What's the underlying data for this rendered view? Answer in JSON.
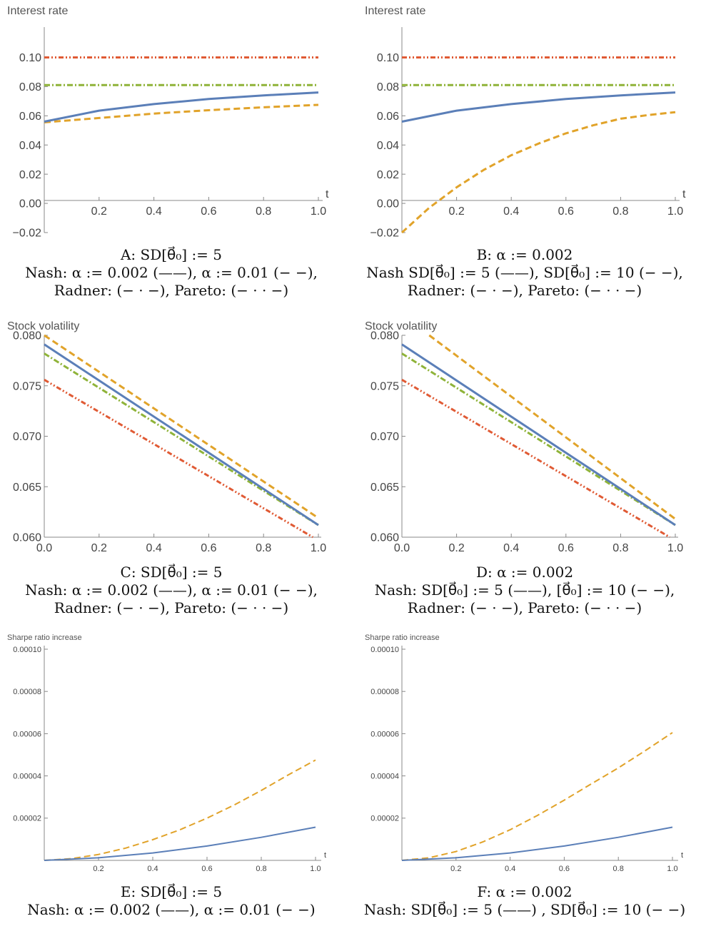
{
  "colors": {
    "nash_low": "#5b7fb8",
    "nash_high": "#e1a32a",
    "radner": "#8fb339",
    "pareto": "#e05a34",
    "axis": "#888888"
  },
  "chart_data": [
    {
      "id": "A",
      "type": "line",
      "title": "Interest rate",
      "xlabel": "t",
      "ylabel": "Interest rate",
      "xlim": [
        0,
        1
      ],
      "ylim": [
        -0.02,
        0.11
      ],
      "xticks": [
        "0.2",
        "0.4",
        "0.6",
        "0.8",
        "1.0"
      ],
      "yticks": [
        "−0.02",
        "0.00",
        "0.02",
        "0.04",
        "0.06",
        "0.08",
        "0.10"
      ],
      "series": [
        {
          "style": "solid",
          "color_key": "nash_low",
          "x": [
            0,
            0.2,
            0.4,
            0.6,
            0.8,
            1.0
          ],
          "y": [
            0.056,
            0.0635,
            0.068,
            0.0715,
            0.074,
            0.076
          ]
        },
        {
          "style": "dashed",
          "color_key": "nash_high",
          "x": [
            0,
            0.2,
            0.4,
            0.6,
            0.8,
            1.0
          ],
          "y": [
            0.0555,
            0.0585,
            0.0615,
            0.0638,
            0.0658,
            0.0675
          ]
        },
        {
          "style": "dashdot",
          "color_key": "radner",
          "x": [
            0,
            1.0
          ],
          "y": [
            0.081,
            0.081
          ]
        },
        {
          "style": "dashdotdot",
          "color_key": "pareto",
          "x": [
            0,
            1.0
          ],
          "y": [
            0.1,
            0.1
          ]
        }
      ],
      "caption": [
        "A: SD[θ⃗₀] := 5",
        "Nash: α := 0.002 (——), α := 0.01 (− −),",
        "Radner: (− · −), Pareto: (− · · −)"
      ]
    },
    {
      "id": "B",
      "type": "line",
      "title": "Interest rate",
      "xlabel": "t",
      "ylabel": "Interest rate",
      "xlim": [
        0,
        1
      ],
      "ylim": [
        -0.02,
        0.11
      ],
      "xticks": [
        "0.2",
        "0.4",
        "0.6",
        "0.8",
        "1.0"
      ],
      "yticks": [
        "−0.02",
        "0.00",
        "0.02",
        "0.04",
        "0.06",
        "0.08",
        "0.10"
      ],
      "series": [
        {
          "style": "solid",
          "color_key": "nash_low",
          "x": [
            0,
            0.2,
            0.4,
            0.6,
            0.8,
            1.0
          ],
          "y": [
            0.056,
            0.0635,
            0.068,
            0.0715,
            0.074,
            0.076
          ]
        },
        {
          "style": "dashed",
          "color_key": "nash_high",
          "x": [
            0,
            0.1,
            0.2,
            0.3,
            0.4,
            0.5,
            0.6,
            0.7,
            0.8,
            0.9,
            1.0
          ],
          "y": [
            -0.02,
            -0.003,
            0.011,
            0.023,
            0.033,
            0.041,
            0.048,
            0.0535,
            0.058,
            0.0605,
            0.0625
          ]
        },
        {
          "style": "dashdot",
          "color_key": "radner",
          "x": [
            0,
            1.0
          ],
          "y": [
            0.081,
            0.081
          ]
        },
        {
          "style": "dashdotdot",
          "color_key": "pareto",
          "x": [
            0,
            1.0
          ],
          "y": [
            0.1,
            0.1
          ]
        }
      ],
      "caption": [
        "B: α := 0.002",
        "Nash SD[θ⃗₀] := 5 (——), SD[θ⃗₀] := 10 (− −),",
        "Radner: (− · −), Pareto: (− · · −)"
      ]
    },
    {
      "id": "C",
      "type": "line",
      "title": "Stock volatility",
      "xlabel": "",
      "ylabel": "Stock volatility",
      "xlim": [
        0,
        1
      ],
      "ylim": [
        0.06,
        0.08
      ],
      "xticks": [
        "0.0",
        "0.2",
        "0.4",
        "0.6",
        "0.8",
        "1.0"
      ],
      "yticks": [
        "0.060",
        "0.065",
        "0.070",
        "0.075",
        "0.080"
      ],
      "series": [
        {
          "style": "solid",
          "color_key": "nash_low",
          "x": [
            0,
            1.0
          ],
          "y": [
            0.0791,
            0.0612
          ]
        },
        {
          "style": "dashed",
          "color_key": "nash_high",
          "x": [
            0,
            1.0
          ],
          "y": [
            0.08,
            0.0619
          ]
        },
        {
          "style": "dashdot",
          "color_key": "radner",
          "x": [
            0,
            1.0
          ],
          "y": [
            0.0782,
            0.0612
          ]
        },
        {
          "style": "dashdotdot",
          "color_key": "pareto",
          "x": [
            0,
            0.98
          ],
          "y": [
            0.0756,
            0.06
          ]
        }
      ],
      "caption": [
        "C: SD[θ⃗₀] := 5",
        "Nash: α := 0.002 (——), α := 0.01 (− −),",
        "Radner: (− · −), Pareto: (− · · −)"
      ]
    },
    {
      "id": "D",
      "type": "line",
      "title": "Stock volatility",
      "xlabel": "",
      "ylabel": "Stock volatility",
      "xlim": [
        0,
        1
      ],
      "ylim": [
        0.06,
        0.08
      ],
      "xticks": [
        "0.0",
        "0.2",
        "0.4",
        "0.6",
        "0.8",
        "1.0"
      ],
      "yticks": [
        "0.060",
        "0.065",
        "0.070",
        "0.075",
        "0.080"
      ],
      "series": [
        {
          "style": "solid",
          "color_key": "nash_low",
          "x": [
            0,
            1.0
          ],
          "y": [
            0.0791,
            0.0612
          ]
        },
        {
          "style": "dashed",
          "color_key": "nash_high",
          "x": [
            0.1,
            1.0
          ],
          "y": [
            0.08,
            0.0618
          ]
        },
        {
          "style": "dashdot",
          "color_key": "radner",
          "x": [
            0,
            1.0
          ],
          "y": [
            0.0782,
            0.0612
          ]
        },
        {
          "style": "dashdotdot",
          "color_key": "pareto",
          "x": [
            0,
            0.98
          ],
          "y": [
            0.0756,
            0.06
          ]
        }
      ],
      "caption": [
        "D: α := 0.002",
        "Nash: SD[θ⃗₀] := 5 (——), [θ⃗₀] := 10 (− −),",
        "Radner: (− · −), Pareto: (− · · −)"
      ]
    },
    {
      "id": "E",
      "type": "line",
      "title": "Sharpe ratio increase",
      "xlabel": "t",
      "ylabel": "Sharpe ratio increase",
      "xlim": [
        0,
        1
      ],
      "ylim": [
        0,
        0.0001
      ],
      "xticks": [
        "0.2",
        "0.4",
        "0.6",
        "0.8",
        "1.0"
      ],
      "yticks": [
        "0.00002",
        "0.00004",
        "0.00006",
        "0.00008",
        "0.00010"
      ],
      "series": [
        {
          "style": "solid",
          "color_key": "nash_low",
          "x": [
            0,
            0.2,
            0.4,
            0.6,
            0.8,
            1.0
          ],
          "y": [
            0,
            1.2e-06,
            3.5e-06,
            6.8e-06,
            1.09e-05,
            1.57e-05
          ]
        },
        {
          "style": "dashed",
          "color_key": "nash_high",
          "x": [
            0,
            0.1,
            0.2,
            0.3,
            0.4,
            0.5,
            0.6,
            0.7,
            0.8,
            0.9,
            1.0
          ],
          "y": [
            0,
            8e-07,
            2.8e-06,
            5.8e-06,
            9.8e-06,
            1.45e-05,
            2e-05,
            2.62e-05,
            3.31e-05,
            4.05e-05,
            4.75e-05
          ]
        }
      ],
      "caption": [
        "E: SD[θ⃗₀] := 5",
        "Nash: α := 0.002 (——), α := 0.01 (− −)"
      ]
    },
    {
      "id": "F",
      "type": "line",
      "title": "Sharpe ratio increase",
      "xlabel": "t",
      "ylabel": "Sharpe ratio increase",
      "xlim": [
        0,
        1
      ],
      "ylim": [
        0,
        0.0001
      ],
      "xticks": [
        "0.2",
        "0.4",
        "0.6",
        "0.8",
        "1.0"
      ],
      "yticks": [
        "0.00002",
        "0.00004",
        "0.00006",
        "0.00008",
        "0.00010"
      ],
      "series": [
        {
          "style": "solid",
          "color_key": "nash_low",
          "x": [
            0,
            0.2,
            0.4,
            0.6,
            0.8,
            1.0
          ],
          "y": [
            0,
            1.2e-06,
            3.5e-06,
            6.8e-06,
            1.09e-05,
            1.57e-05
          ]
        },
        {
          "style": "dashed",
          "color_key": "nash_high",
          "x": [
            0,
            0.1,
            0.2,
            0.3,
            0.4,
            0.5,
            0.6,
            0.7,
            0.8,
            0.9,
            1.0
          ],
          "y": [
            0,
            1.2e-06,
            4.2e-06,
            8.8e-06,
            1.45e-05,
            2.12e-05,
            2.85e-05,
            3.62e-05,
            4.38e-05,
            5.2e-05,
            6.05e-05
          ]
        }
      ],
      "caption": [
        "F: α := 0.002",
        "Nash: SD[θ⃗₀] := 5 (——) , SD[θ⃗₀] := 10 (− −)"
      ]
    }
  ]
}
